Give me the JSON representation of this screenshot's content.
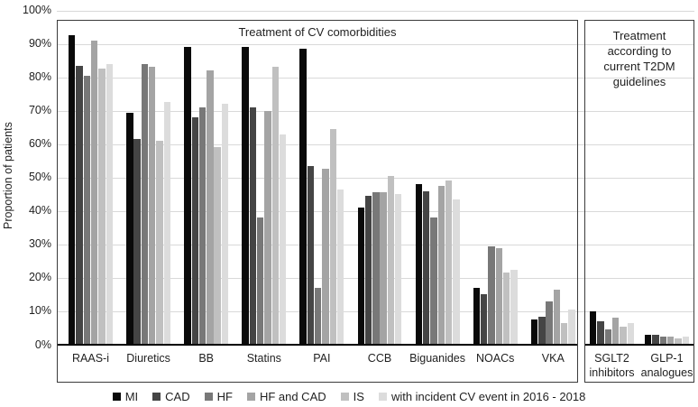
{
  "chart_data": {
    "type": "bar",
    "ylabel": "Proportion of patients",
    "ylim": [
      0,
      100
    ],
    "ytick_step": 10,
    "ytick_labels": [
      "0%",
      "10%",
      "20%",
      "30%",
      "40%",
      "50%",
      "60%",
      "70%",
      "80%",
      "90%",
      "100%"
    ],
    "grid": true,
    "legend_position": "bottom",
    "panels": [
      {
        "id": "cv",
        "title": "Treatment of CV comorbidities",
        "categories": [
          "RAAS-i",
          "Diuretics",
          "BB",
          "Statins",
          "PAI",
          "CCB",
          "Biguanides",
          "NOACs",
          "VKA"
        ],
        "category_lines": [
          [
            "RAAS-i"
          ],
          [
            "Diuretics"
          ],
          [
            "BB"
          ],
          [
            "Statins"
          ],
          [
            "PAI"
          ],
          [
            "CCB"
          ],
          [
            "Biguanides"
          ],
          [
            "NOACs"
          ],
          [
            "VKA"
          ]
        ]
      },
      {
        "id": "t2dm",
        "title": "Treatment according to current T2DM guidelines",
        "title_lines": [
          "Treatment",
          "according to",
          "current T2DM",
          "guidelines"
        ],
        "categories": [
          "SGLT2 inhibitors",
          "GLP-1 analogues"
        ],
        "category_lines": [
          [
            "SGLT2",
            "inhibitors"
          ],
          [
            "GLP-1",
            "analogues"
          ]
        ]
      }
    ],
    "series": [
      {
        "name": "MI",
        "color": "#0a0a0a",
        "values": {
          "cv": [
            92.5,
            69.5,
            89,
            89,
            88.5,
            41,
            48,
            17,
            7.5
          ],
          "t2dm": [
            10,
            3
          ]
        }
      },
      {
        "name": "CAD",
        "color": "#454545",
        "values": {
          "cv": [
            83.5,
            61.5,
            68,
            71,
            53.5,
            44.5,
            46,
            15,
            8.5
          ],
          "t2dm": [
            7,
            3
          ]
        }
      },
      {
        "name": "HF",
        "color": "#787878",
        "values": {
          "cv": [
            80.5,
            84,
            71,
            38,
            17,
            45.5,
            38,
            29.5,
            13
          ],
          "t2dm": [
            4.5,
            2.5
          ]
        }
      },
      {
        "name": "HF and CAD",
        "color": "#a4a4a4",
        "values": {
          "cv": [
            91,
            83,
            82,
            70,
            52.5,
            45.5,
            47.5,
            29,
            16.5
          ],
          "t2dm": [
            8,
            2.5
          ]
        }
      },
      {
        "name": "IS",
        "color": "#c0c0c0",
        "values": {
          "cv": [
            82.5,
            61,
            59,
            83,
            64.5,
            50.5,
            49,
            21.5,
            6.5
          ],
          "t2dm": [
            5.5,
            2
          ]
        }
      },
      {
        "name": "with incident CV event in 2016 - 2018",
        "color": "#dcdcdc",
        "values": {
          "cv": [
            84,
            72.5,
            72,
            63,
            46.5,
            45,
            43.5,
            22.5,
            10.5
          ],
          "t2dm": [
            6.5,
            2.5
          ]
        }
      }
    ],
    "legend": [
      "MI",
      "CAD",
      "HF",
      "HF and CAD",
      "IS",
      "with incident CV event in 2016 - 2018"
    ]
  }
}
